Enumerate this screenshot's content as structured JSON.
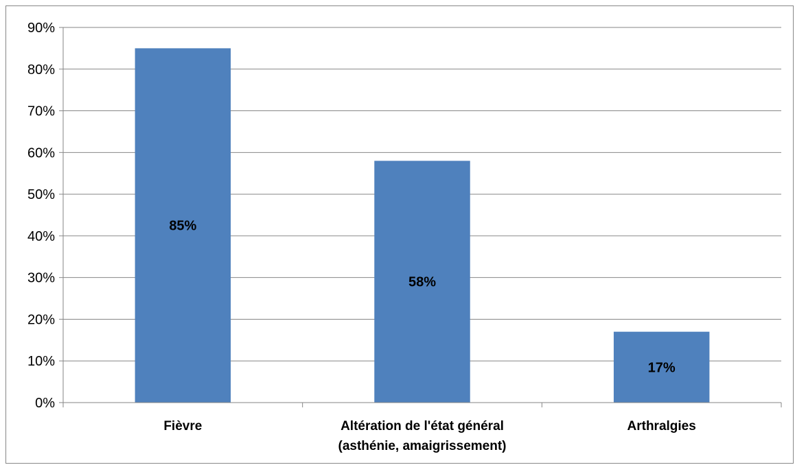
{
  "chart_data": {
    "type": "bar",
    "categories": [
      [
        "Fièvre"
      ],
      [
        "Altération de l'état général",
        "(asthénie, amaigrissement)"
      ],
      [
        "Arthralgies"
      ]
    ],
    "values": [
      85,
      58,
      17
    ],
    "data_labels": [
      "85%",
      "58%",
      "17%"
    ],
    "yticks": [
      "0%",
      "10%",
      "20%",
      "30%",
      "40%",
      "50%",
      "60%",
      "70%",
      "80%",
      "90%"
    ],
    "ylim": [
      0,
      90
    ],
    "grid": true,
    "legend": "none",
    "title": "",
    "xlabel": "",
    "ylabel": "",
    "colors": {
      "bar": "#4f81bd",
      "grid": "#868686",
      "axis": "#868686"
    }
  }
}
